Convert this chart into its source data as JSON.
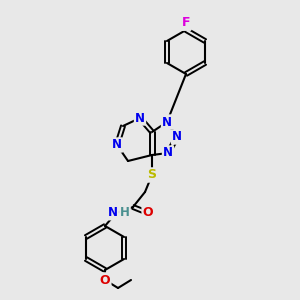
{
  "background_color": "#e8e8e8",
  "bond_color": "#000000",
  "atom_colors": {
    "N": "#0000ee",
    "O": "#dd0000",
    "S": "#bbbb00",
    "F": "#dd00dd",
    "C": "#000000",
    "H": "#4a9090"
  },
  "fig_width": 3.0,
  "fig_height": 3.0,
  "dpi": 100
}
